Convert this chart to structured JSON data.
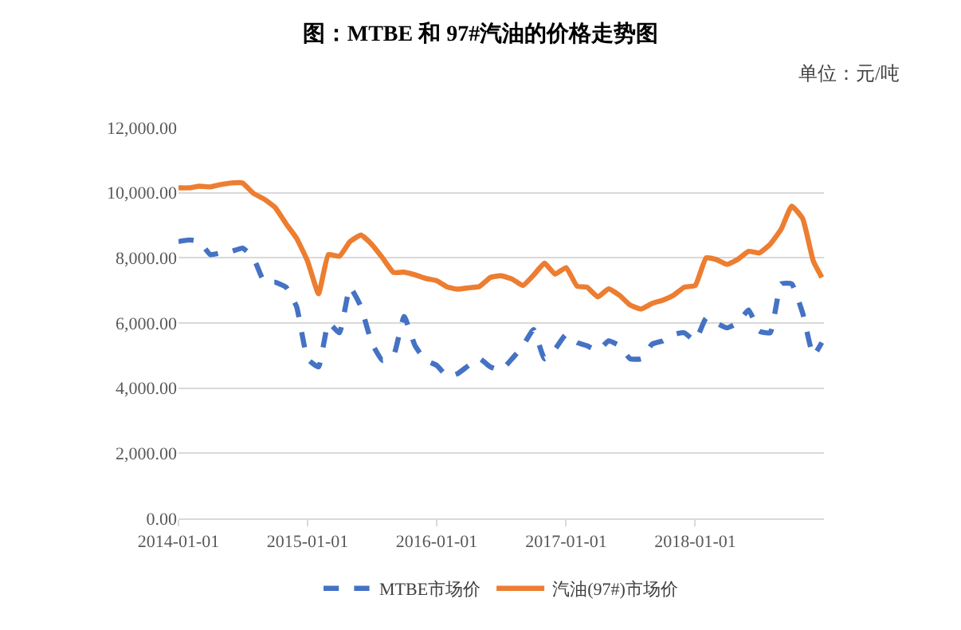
{
  "chart_data": {
    "type": "line",
    "title": "图：MTBE 和 97#汽油的价格走势图",
    "annotations": [
      "单位：元/吨"
    ],
    "x": [
      "2014-01-01",
      "2014-02-01",
      "2014-03-01",
      "2014-04-01",
      "2014-05-01",
      "2014-06-01",
      "2014-07-01",
      "2014-08-01",
      "2014-09-01",
      "2014-10-01",
      "2014-11-01",
      "2014-12-01",
      "2015-01-01",
      "2015-02-01",
      "2015-03-01",
      "2015-04-01",
      "2015-05-01",
      "2015-06-01",
      "2015-07-01",
      "2015-08-01",
      "2015-09-01",
      "2015-10-01",
      "2015-11-01",
      "2015-12-01",
      "2016-01-01",
      "2016-02-01",
      "2016-03-01",
      "2016-04-01",
      "2016-05-01",
      "2016-06-01",
      "2016-07-01",
      "2016-08-01",
      "2016-09-01",
      "2016-10-01",
      "2016-11-01",
      "2016-12-01",
      "2017-01-01",
      "2017-02-01",
      "2017-03-01",
      "2017-04-01",
      "2017-05-01",
      "2017-06-01",
      "2017-07-01",
      "2017-08-01",
      "2017-09-01",
      "2017-10-01",
      "2017-11-01",
      "2017-12-01",
      "2018-01-01",
      "2018-02-01",
      "2018-03-01",
      "2018-04-01",
      "2018-05-01",
      "2018-06-01",
      "2018-07-01",
      "2018-08-01",
      "2018-09-01",
      "2018-10-01",
      "2018-11-01",
      "2018-12-01",
      "2018-12-25"
    ],
    "series": [
      {
        "name": "MTBE市场价",
        "color": "#4472c4",
        "line_style": "dashed",
        "values": [
          8500,
          8550,
          8500,
          8100,
          8150,
          8200,
          8300,
          8000,
          7250,
          7250,
          7100,
          6500,
          4900,
          4650,
          6000,
          5700,
          7100,
          6500,
          5400,
          4850,
          5000,
          6200,
          5300,
          4850,
          4700,
          4350,
          4450,
          4700,
          4900,
          4650,
          4550,
          4900,
          5300,
          5800,
          4900,
          5200,
          5650,
          5400,
          5300,
          5150,
          5450,
          5300,
          4900,
          4900,
          5350,
          5450,
          5650,
          5700,
          5450,
          6150,
          6000,
          5850,
          6000,
          6400,
          5750,
          5700,
          7200,
          7200,
          6300,
          5000,
          5400
        ]
      },
      {
        "name": "汽油(97#)市场价",
        "color": "#ed7d31",
        "line_style": "solid",
        "values": [
          10150,
          10150,
          10200,
          10180,
          10250,
          10300,
          10300,
          9980,
          9800,
          9550,
          9050,
          8600,
          7900,
          6900,
          8100,
          8050,
          8500,
          8700,
          8420,
          8000,
          7550,
          7560,
          7480,
          7370,
          7300,
          7100,
          7040,
          7080,
          7120,
          7400,
          7450,
          7350,
          7150,
          7470,
          7836,
          7500,
          7700,
          7130,
          7100,
          6800,
          7050,
          6850,
          6550,
          6430,
          6600,
          6700,
          6850,
          7100,
          7150,
          8000,
          7950,
          7800,
          7950,
          8200,
          8150,
          8420,
          8880,
          9590,
          9200,
          7900,
          7400
        ]
      }
    ],
    "xlim": [
      "2014-01-01",
      "2018-12-31"
    ],
    "xticks": [
      {
        "value": "2014-01-01",
        "label": "2014-01-01"
      },
      {
        "value": "2015-01-01",
        "label": "2015-01-01"
      },
      {
        "value": "2016-01-01",
        "label": "2016-01-01"
      },
      {
        "value": "2017-01-01",
        "label": "2017-01-01"
      },
      {
        "value": "2018-01-01",
        "label": "2018-01-01"
      }
    ],
    "ylim": [
      0,
      12000
    ],
    "yticks": [
      {
        "value": 0,
        "label": "0.00"
      },
      {
        "value": 2000,
        "label": "2,000.00"
      },
      {
        "value": 4000,
        "label": "4,000.00"
      },
      {
        "value": 6000,
        "label": "6,000.00"
      },
      {
        "value": 8000,
        "label": "8,000.00"
      },
      {
        "value": 10000,
        "label": "10,000.00"
      },
      {
        "value": 12000,
        "label": "12,000.00"
      }
    ],
    "grid": "y",
    "legend": "bottom",
    "marker": "none"
  }
}
